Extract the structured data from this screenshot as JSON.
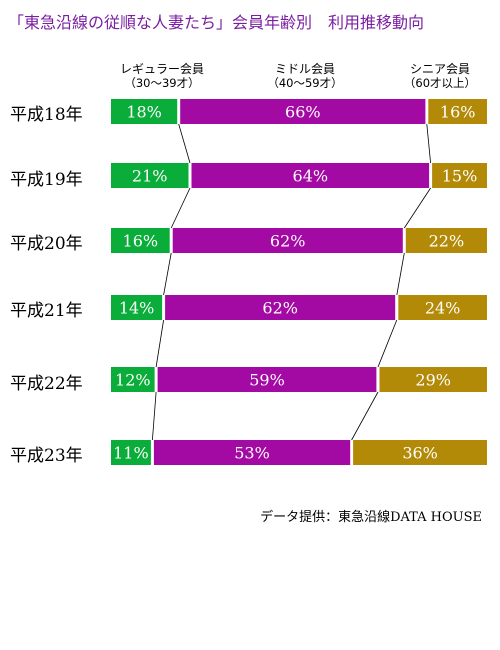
{
  "page_title": "「東急沿線の従順な人妻たち」会員年齢別　利用推移動向",
  "source": "データ提供：東急沿線DATA HOUSE",
  "colors": {
    "title": "#7b1fa2",
    "regular": "#0aac3a",
    "middle": "#a30aa3",
    "senior": "#b28a08"
  },
  "headers": [
    {
      "name": "レギュラー会員",
      "range": "（30～39才）"
    },
    {
      "name": "ミドル会員",
      "range": "（40～59才）"
    },
    {
      "name": "シニア会員",
      "range": "（60才以上）"
    }
  ],
  "chart_data": {
    "type": "bar",
    "stacked": true,
    "orientation": "horizontal",
    "categories": [
      "平成18年",
      "平成19年",
      "平成20年",
      "平成21年",
      "平成22年",
      "平成23年"
    ],
    "series": [
      {
        "name": "レギュラー会員",
        "values": [
          18,
          21,
          16,
          14,
          12,
          11
        ],
        "labels": [
          "18%",
          "21%",
          "16%",
          "14%",
          "12%",
          "11%"
        ]
      },
      {
        "name": "ミドル会員",
        "values": [
          66,
          64,
          62,
          62,
          59,
          53
        ],
        "labels": [
          "66%",
          "64%",
          "62%",
          "62%",
          "59%",
          "53%"
        ]
      },
      {
        "name": "シニア会員",
        "values": [
          16,
          15,
          22,
          24,
          29,
          36
        ],
        "labels": [
          "16%",
          "15%",
          "22%",
          "24%",
          "29%",
          "36%"
        ]
      }
    ],
    "connector_lines": true,
    "unit": "%",
    "xlim": [
      0,
      100
    ],
    "legend": "top"
  }
}
